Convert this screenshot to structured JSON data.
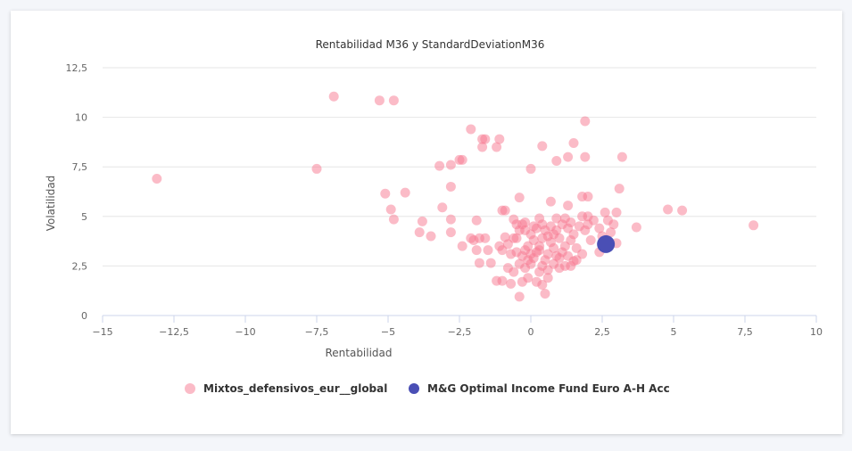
{
  "chart_data": {
    "type": "scatter",
    "title": "Rentabilidad M36 y StandardDeviationM36",
    "xlabel": "Rentabilidad",
    "ylabel": "Volatilidad",
    "xlim": [
      -15,
      10
    ],
    "ylim": [
      0,
      12.5
    ],
    "xticks": [
      -15,
      -12.5,
      -10,
      -7.5,
      -5,
      -2.5,
      0,
      2.5,
      5,
      7.5,
      10
    ],
    "xtick_labels": [
      "−15",
      "−12,5",
      "−10",
      "−7,5",
      "−5",
      "−2,5",
      "0",
      "2,5",
      "5",
      "7,5",
      "10"
    ],
    "yticks": [
      0,
      2.5,
      5,
      7.5,
      10,
      12.5
    ],
    "ytick_labels": [
      "0",
      "2,5",
      "5",
      "7,5",
      "10",
      "12,5"
    ],
    "grid": true,
    "legend": "bottom-center",
    "series": [
      {
        "name": "Mixtos_defensivos_eur__global",
        "color": "#f7778f",
        "points": [
          [
            -13.1,
            6.9
          ],
          [
            -7.5,
            7.4
          ],
          [
            -6.9,
            11.05
          ],
          [
            -5.3,
            10.85
          ],
          [
            -4.8,
            10.85
          ],
          [
            -5.1,
            6.15
          ],
          [
            -4.9,
            5.35
          ],
          [
            -4.8,
            4.85
          ],
          [
            -4.4,
            6.2
          ],
          [
            -3.9,
            4.2
          ],
          [
            -3.8,
            4.75
          ],
          [
            -3.5,
            4.0
          ],
          [
            -3.2,
            7.55
          ],
          [
            -3.1,
            5.45
          ],
          [
            -2.8,
            7.6
          ],
          [
            -2.8,
            6.5
          ],
          [
            -2.8,
            4.85
          ],
          [
            -2.8,
            4.2
          ],
          [
            -2.5,
            7.85
          ],
          [
            -2.4,
            7.85
          ],
          [
            -2.4,
            3.5
          ],
          [
            -2.1,
            9.4
          ],
          [
            -1.7,
            8.9
          ],
          [
            -1.6,
            8.9
          ],
          [
            -1.7,
            8.5
          ],
          [
            -1.2,
            8.5
          ],
          [
            -1.1,
            8.9
          ],
          [
            0.4,
            8.55
          ],
          [
            1.9,
            9.8
          ],
          [
            1.5,
            8.7
          ],
          [
            1.3,
            8.0
          ],
          [
            1.9,
            8.0
          ],
          [
            0.9,
            7.8
          ],
          [
            0.0,
            7.4
          ],
          [
            3.2,
            8.0
          ],
          [
            3.1,
            6.4
          ],
          [
            1.8,
            6.0
          ],
          [
            2.0,
            6.0
          ],
          [
            -0.4,
            5.95
          ],
          [
            0.7,
            5.75
          ],
          [
            1.3,
            5.55
          ],
          [
            2.6,
            5.2
          ],
          [
            3.0,
            5.2
          ],
          [
            4.8,
            5.35
          ],
          [
            5.3,
            5.3
          ],
          [
            7.8,
            4.55
          ],
          [
            3.7,
            4.45
          ],
          [
            3.0,
            3.65
          ],
          [
            2.4,
            3.2
          ],
          [
            0.5,
            1.1
          ],
          [
            -0.4,
            0.95
          ],
          [
            0.4,
            1.55
          ],
          [
            -0.7,
            1.6
          ],
          [
            -2.1,
            3.9
          ],
          [
            -2.0,
            3.8
          ],
          [
            -1.8,
            3.9
          ],
          [
            -1.6,
            3.9
          ],
          [
            -1.5,
            3.3
          ],
          [
            -1.9,
            3.3
          ],
          [
            -1.4,
            2.65
          ],
          [
            -1.8,
            2.65
          ],
          [
            -1.9,
            4.8
          ],
          [
            -1.0,
            5.3
          ],
          [
            -0.9,
            5.3
          ],
          [
            -0.6,
            4.85
          ],
          [
            -0.5,
            4.6
          ],
          [
            -0.3,
            4.6
          ],
          [
            -0.9,
            3.95
          ],
          [
            -0.6,
            3.9
          ],
          [
            -0.5,
            3.9
          ],
          [
            -1.0,
            3.3
          ],
          [
            -0.7,
            3.1
          ],
          [
            -0.5,
            3.2
          ],
          [
            -0.3,
            3.0
          ],
          [
            -0.2,
            3.3
          ],
          [
            -1.2,
            1.75
          ],
          [
            -1.0,
            1.75
          ],
          [
            -0.8,
            2.4
          ],
          [
            -0.6,
            2.2
          ],
          [
            -0.4,
            2.6
          ],
          [
            -0.2,
            2.4
          ],
          [
            -0.1,
            1.9
          ],
          [
            0.0,
            2.6
          ],
          [
            0.1,
            2.9
          ],
          [
            0.2,
            3.2
          ],
          [
            0.3,
            3.5
          ],
          [
            0.1,
            3.8
          ],
          [
            0.0,
            4.1
          ],
          [
            0.2,
            4.4
          ],
          [
            0.4,
            4.6
          ],
          [
            0.5,
            4.3
          ],
          [
            0.6,
            4.0
          ],
          [
            0.7,
            3.7
          ],
          [
            0.8,
            3.4
          ],
          [
            0.6,
            3.1
          ],
          [
            0.5,
            2.8
          ],
          [
            0.4,
            2.5
          ],
          [
            0.6,
            2.3
          ],
          [
            0.8,
            2.6
          ],
          [
            1.0,
            2.9
          ],
          [
            1.1,
            3.2
          ],
          [
            1.2,
            3.5
          ],
          [
            1.0,
            3.9
          ],
          [
            0.9,
            4.3
          ],
          [
            1.1,
            4.6
          ],
          [
            1.3,
            4.4
          ],
          [
            1.5,
            4.1
          ],
          [
            1.4,
            3.8
          ],
          [
            1.6,
            3.4
          ],
          [
            1.8,
            3.1
          ],
          [
            1.6,
            2.8
          ],
          [
            1.2,
            2.5
          ],
          [
            1.0,
            2.4
          ],
          [
            1.5,
            2.75
          ],
          [
            1.7,
            4.5
          ],
          [
            1.9,
            4.3
          ],
          [
            2.0,
            4.6
          ],
          [
            2.2,
            4.8
          ],
          [
            2.4,
            4.4
          ],
          [
            2.7,
            4.8
          ],
          [
            2.9,
            4.6
          ],
          [
            2.8,
            4.2
          ],
          [
            2.5,
            4.0
          ],
          [
            2.1,
            3.8
          ],
          [
            1.8,
            5.0
          ],
          [
            2.0,
            5.0
          ],
          [
            0.3,
            4.9
          ],
          [
            -0.2,
            4.7
          ],
          [
            -0.1,
            3.5
          ],
          [
            0.0,
            3.1
          ],
          [
            0.3,
            2.2
          ],
          [
            0.6,
            1.9
          ],
          [
            -0.3,
            1.7
          ],
          [
            0.2,
            1.7
          ],
          [
            0.9,
            4.9
          ],
          [
            1.2,
            4.9
          ],
          [
            1.4,
            4.7
          ],
          [
            0.7,
            4.5
          ],
          [
            0.8,
            4.1
          ],
          [
            1.3,
            3.0
          ],
          [
            -0.2,
            4.3
          ],
          [
            -0.4,
            4.3
          ],
          [
            0.1,
            4.5
          ],
          [
            0.4,
            3.9
          ],
          [
            0.3,
            3.3
          ],
          [
            -0.1,
            2.8
          ],
          [
            0.9,
            3.0
          ],
          [
            1.4,
            2.5
          ],
          [
            -1.1,
            3.5
          ],
          [
            -0.8,
            3.6
          ]
        ]
      },
      {
        "name": "M&G Optimal Income Fund Euro A-H Acc",
        "color": "#4a4fb5",
        "points": [
          [
            2.63,
            3.6
          ]
        ]
      }
    ]
  }
}
